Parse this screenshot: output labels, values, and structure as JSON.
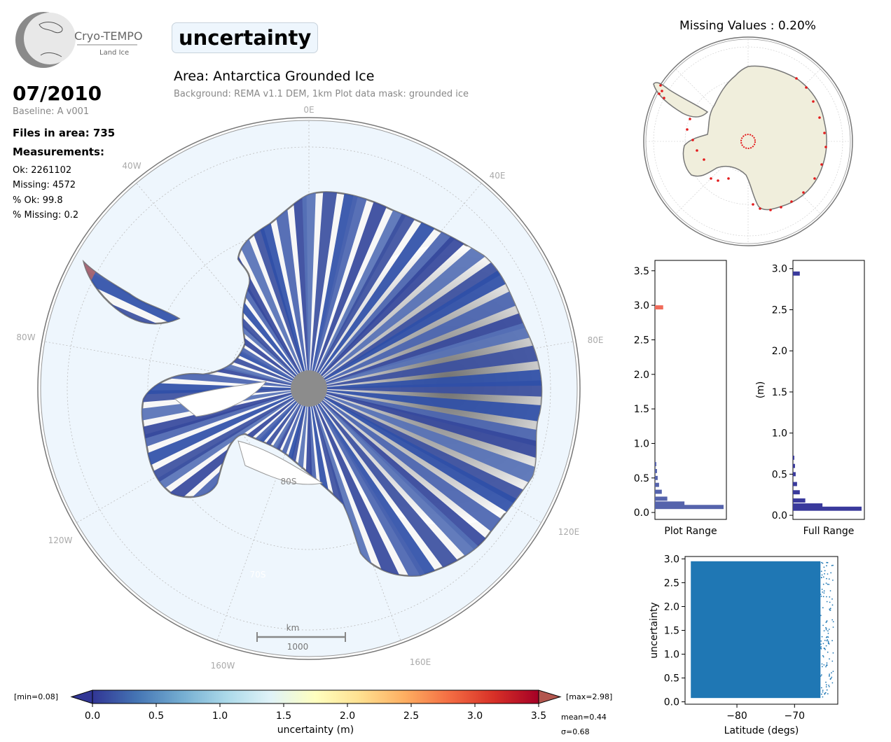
{
  "header": {
    "logo_text": "Cryo-TEMPO",
    "logo_subtext": "Land Ice",
    "parameter": "uncertainty",
    "area_title": "Area: Antarctica Grounded Ice",
    "background_note": "Background: REMA v1.1 DEM, 1km   Plot data mask: grounded ice"
  },
  "info": {
    "date": "07/2010",
    "baseline": "Baseline: A v001",
    "files": "Files in area: 735",
    "measurements_heading": "Measurements:",
    "ok": "Ok: 2261102",
    "missing": "Missing: 4572",
    "pct_ok": "% Ok: 99.8",
    "pct_missing": "% Missing: 0.2"
  },
  "map": {
    "lon_labels": [
      "0E",
      "40E",
      "80E",
      "120E",
      "160E",
      "160W",
      "120W",
      "80W",
      "40W"
    ],
    "lat_labels": [
      "80S",
      "70S"
    ],
    "scale_unit": "km",
    "scale_value": "1000",
    "colors": {
      "ocean": "#eef6fd",
      "coast": "#808080",
      "low": "#313695",
      "mid": "#ffffbf",
      "high": "#a50026",
      "pole_hole": "#8c8c8c"
    }
  },
  "missing_panel": {
    "title": "Missing Values : 0.20%",
    "land_color": "#f0eedc",
    "missing_color": "#e31a1c"
  },
  "chart_data": [
    {
      "type": "bar",
      "orientation": "horizontal",
      "xlabel": "Plot Range",
      "ylim": [
        -0.1,
        3.65
      ],
      "yticks": [
        "0.0",
        "0.5",
        "1.0",
        "1.5",
        "2.0",
        "2.5",
        "3.0",
        "3.5"
      ],
      "bins": [
        {
          "y": 0.08,
          "count": 1.0
        },
        {
          "y": 0.13,
          "count": 0.43
        },
        {
          "y": 0.2,
          "count": 0.18
        },
        {
          "y": 0.3,
          "count": 0.1
        },
        {
          "y": 0.4,
          "count": 0.06
        },
        {
          "y": 0.5,
          "count": 0.04
        },
        {
          "y": 0.6,
          "count": 0.03
        },
        {
          "y": 0.7,
          "count": 0.02
        },
        {
          "y": 2.97,
          "count": 0.12
        }
      ],
      "colors": {
        "normal": "#5563ac",
        "outlier": "#f06b5a"
      }
    },
    {
      "type": "bar",
      "orientation": "horizontal",
      "xlabel": "Full Range",
      "ylabel": "(m)",
      "ylim": [
        -0.05,
        3.1
      ],
      "yticks": [
        "0.0",
        "0.5",
        "1.0",
        "1.5",
        "2.0",
        "2.5",
        "3.0"
      ],
      "bins": [
        {
          "y": 0.08,
          "count": 1.0
        },
        {
          "y": 0.12,
          "count": 0.43
        },
        {
          "y": 0.18,
          "count": 0.18
        },
        {
          "y": 0.28,
          "count": 0.1
        },
        {
          "y": 0.38,
          "count": 0.06
        },
        {
          "y": 0.5,
          "count": 0.04
        },
        {
          "y": 0.6,
          "count": 0.03
        },
        {
          "y": 0.7,
          "count": 0.02
        },
        {
          "y": 2.94,
          "count": 0.1
        }
      ],
      "colors": {
        "normal": "#3a3a9c"
      }
    },
    {
      "type": "scatter",
      "xlabel": "Latitude (degs)",
      "ylabel": "uncertainty",
      "xlim": [
        -89,
        -62.5
      ],
      "ylim": [
        -0.05,
        3.05
      ],
      "xticks": [
        "−80",
        "−70"
      ],
      "yticks": [
        "0.0",
        "0.5",
        "1.0",
        "1.5",
        "2.0",
        "2.5",
        "3.0"
      ],
      "dense_region": {
        "x": [
          -88,
          -65.5
        ],
        "y": [
          0.08,
          2.95
        ]
      },
      "color": "#1f77b4"
    },
    {
      "type": "colorbar",
      "label": "uncertainty (m)",
      "range": [
        0.0,
        3.5
      ],
      "ticks": [
        "0.0",
        "0.5",
        "1.0",
        "1.5",
        "2.0",
        "2.5",
        "3.0",
        "3.5"
      ],
      "min_label": "[min=0.08]",
      "max_label": "[max=2.98]",
      "mean_label": "mean=0.44",
      "sigma_label": "σ=0.68",
      "colormap": [
        "#313695",
        "#4575b4",
        "#74add1",
        "#abd9e9",
        "#e0f3f8",
        "#ffffbf",
        "#fee090",
        "#fdae61",
        "#f46d43",
        "#d73027",
        "#a50026"
      ]
    }
  ]
}
